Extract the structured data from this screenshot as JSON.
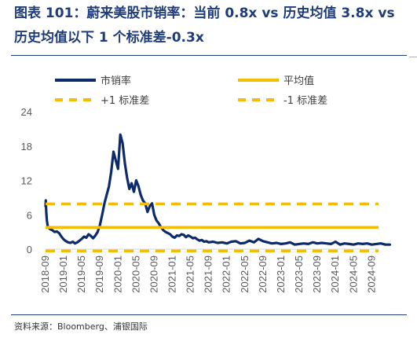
{
  "title": "图表  101：蔚来美股市销率：当前 0.8x vs  历史均值 3.8x vs  历史均值以下 1 个标准差-0.3x",
  "source": "资料来源：Bloomberg、浦银国际",
  "chart_data": {
    "type": "line",
    "title": "",
    "xlabel": "",
    "ylabel": "",
    "ylim": [
      0,
      24
    ],
    "yticks": [
      "0",
      "6",
      "12",
      "18",
      "24"
    ],
    "xticks": [
      "2018-09",
      "2019-01",
      "2019-05",
      "2019-09",
      "2020-01",
      "2020-05",
      "2020-09",
      "2021-01",
      "2021-05",
      "2021-09",
      "2022-01",
      "2022-05",
      "2022-09",
      "2023-01",
      "2023-05",
      "2023-09",
      "2024-01",
      "2024-05",
      "2024-09"
    ],
    "grid": false,
    "legend": "top",
    "colors": {
      "series": "#0d2a6b",
      "mean": "#f5bd00"
    },
    "series": [
      {
        "name": "市销率",
        "style": "solid",
        "color": "#0d2a6b",
        "x": [
          0,
          0.05,
          0.15,
          0.3,
          0.5,
          1,
          1.5,
          2,
          2.5,
          3,
          3.5,
          4,
          4.5,
          5,
          5.5,
          6,
          6.5,
          7,
          7.5,
          8,
          8.5,
          9,
          9.5,
          10,
          10.5,
          11,
          11.5,
          12,
          12.5,
          13,
          13.5,
          14,
          14.5,
          15,
          15.5,
          16,
          16.5,
          17,
          17.5,
          18,
          18.5,
          19,
          19.5,
          20,
          20.5,
          21,
          21.5,
          22,
          22.5,
          23,
          23.5,
          24,
          24.5,
          25,
          25.5,
          26,
          26.5,
          27,
          27.5,
          28,
          28.5,
          29,
          29.5,
          30,
          30.5,
          31,
          31.5,
          32,
          32.5,
          33,
          33.5,
          34,
          34.5,
          35,
          35.5,
          36,
          37,
          38,
          39,
          40,
          41,
          42,
          43,
          44,
          45,
          46,
          47,
          48,
          49,
          50,
          51,
          52,
          53,
          54,
          55,
          56,
          57,
          58,
          59,
          60,
          61,
          62,
          63,
          64,
          65,
          66,
          67,
          68,
          69,
          70,
          71,
          72,
          73,
          74,
          75,
          76
        ],
        "values": [
          7.5,
          8.5,
          6.5,
          5.0,
          3.9,
          3.5,
          3.3,
          3.0,
          3.1,
          2.8,
          2.2,
          1.7,
          1.4,
          1.2,
          1.1,
          1.3,
          1.0,
          1.2,
          1.5,
          1.8,
          2.2,
          2.0,
          2.6,
          2.3,
          1.9,
          2.4,
          3.0,
          4.2,
          6.0,
          8.0,
          9.5,
          11.0,
          13.5,
          17.0,
          15.5,
          14.0,
          20.0,
          18.5,
          15.0,
          12.5,
          10.5,
          11.5,
          10.0,
          12.0,
          11.0,
          9.5,
          8.5,
          8.0,
          6.5,
          7.5,
          8.0,
          6.0,
          5.0,
          4.5,
          3.8,
          3.3,
          3.0,
          2.8,
          2.6,
          2.2,
          2.0,
          2.4,
          2.3,
          2.6,
          2.5,
          2.1,
          2.4,
          2.2,
          1.9,
          2.0,
          1.7,
          1.5,
          1.6,
          1.3,
          1.4,
          1.2,
          1.3,
          1.1,
          1.2,
          1.0,
          1.3,
          1.4,
          1.0,
          1.1,
          1.5,
          1.2,
          1.8,
          1.4,
          1.2,
          1.0,
          1.1,
          0.9,
          1.0,
          1.2,
          0.8,
          0.9,
          1.0,
          0.9,
          1.2,
          1.0,
          1.1,
          1.0,
          0.9,
          1.3,
          0.8,
          1.0,
          0.9,
          0.8,
          1.0,
          0.9,
          1.0,
          0.8,
          0.9,
          1.0,
          0.8,
          0.8
        ]
      },
      {
        "name": "平均值",
        "style": "solid",
        "color": "#f5bd00",
        "value": 3.8
      },
      {
        "name": "+1 标准差",
        "style": "dashed",
        "color": "#f5bd00",
        "value": 7.9
      },
      {
        "name": "-1 标准差",
        "style": "dashed",
        "color": "#f5bd00",
        "value": -0.3
      }
    ]
  }
}
